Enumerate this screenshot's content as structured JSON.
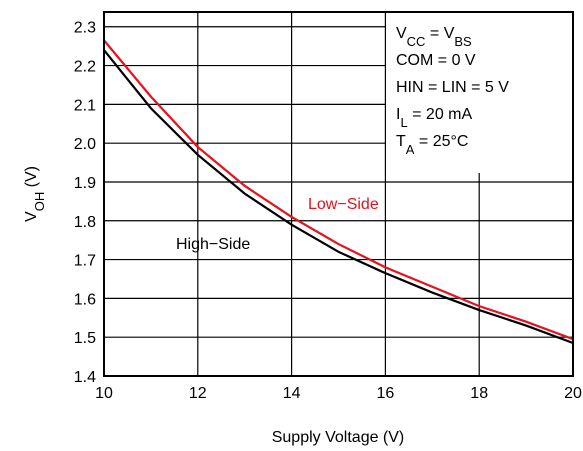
{
  "chart_data": {
    "type": "line",
    "x_label": "Supply Voltage (V)",
    "y_label": [
      {
        "text": "V"
      },
      {
        "text": "OH",
        "sub": true
      },
      {
        "text": " (V)"
      }
    ],
    "x": [
      10,
      11,
      12,
      13,
      14,
      15,
      16,
      17,
      18,
      19,
      20
    ],
    "series": [
      {
        "name": "Low−Side",
        "color": "#e8101a",
        "values": [
          2.265,
          2.12,
          1.99,
          1.89,
          1.81,
          1.74,
          1.68,
          1.63,
          1.58,
          1.54,
          1.495
        ]
      },
      {
        "name": "High−Side",
        "color": "#000000",
        "values": [
          2.24,
          2.09,
          1.97,
          1.87,
          1.79,
          1.72,
          1.665,
          1.615,
          1.57,
          1.53,
          1.485
        ]
      }
    ],
    "xlim": [
      10,
      20
    ],
    "xticks": [
      10,
      12,
      14,
      16,
      18,
      20
    ],
    "ylim": [
      1.4,
      2.338
    ],
    "yticks": [
      1.4,
      1.5,
      1.6,
      1.7,
      1.8,
      1.9,
      {
        "value": 2,
        "label": "2.0"
      },
      2.1,
      2.2,
      2.3
    ],
    "grid": true,
    "annotations": [
      [
        {
          "text": "V"
        },
        {
          "text": "CC",
          "sub": true
        },
        {
          "text": " = V"
        },
        {
          "text": "BS",
          "sub": true
        }
      ],
      [
        {
          "text": "COM = 0 V"
        }
      ],
      [
        {
          "text": "HIN = LIN = 5 V"
        }
      ],
      [
        {
          "text": "I"
        },
        {
          "text": "L",
          "sub": true
        },
        {
          "text": " = 20 mA"
        }
      ],
      [
        {
          "text": "T"
        },
        {
          "text": "A",
          "sub": true
        },
        {
          "text": " = 25°C"
        }
      ]
    ]
  }
}
